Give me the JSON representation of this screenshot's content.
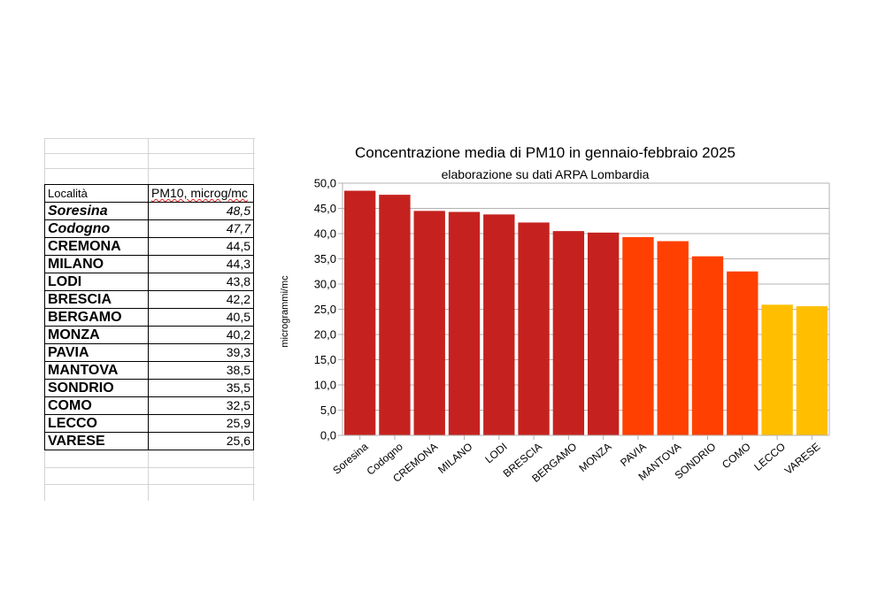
{
  "table": {
    "headers": [
      "Località",
      "PM10, microg/mc"
    ],
    "rows": [
      {
        "name": "Soresina",
        "value": "48,5",
        "italic": true
      },
      {
        "name": "Codogno",
        "value": "47,7",
        "italic": true
      },
      {
        "name": "CREMONA",
        "value": "44,5",
        "italic": false
      },
      {
        "name": "MILANO",
        "value": "44,3",
        "italic": false
      },
      {
        "name": "LODI",
        "value": "43,8",
        "italic": false
      },
      {
        "name": "BRESCIA",
        "value": "42,2",
        "italic": false
      },
      {
        "name": "BERGAMO",
        "value": "40,5",
        "italic": false
      },
      {
        "name": "MONZA",
        "value": "40,2",
        "italic": false
      },
      {
        "name": "PAVIA",
        "value": "39,3",
        "italic": false
      },
      {
        "name": "MANTOVA",
        "value": "38,5",
        "italic": false
      },
      {
        "name": "SONDRIO",
        "value": "35,5",
        "italic": false
      },
      {
        "name": "COMO",
        "value": "32,5",
        "italic": false
      },
      {
        "name": "LECCO",
        "value": "25,9",
        "italic": false
      },
      {
        "name": "VARESE",
        "value": "25,6",
        "italic": false
      }
    ]
  },
  "chart_data": {
    "type": "bar",
    "title": "Concentrazione media di PM10 in gennaio-febbraio 2025",
    "subtitle": "elaborazione su dati ARPA Lombardia",
    "xlabel": "",
    "ylabel": "microgrammi/mc",
    "categories": [
      "Soresina",
      "Codogno",
      "CREMONA",
      "MILANO",
      "LODI",
      "BRESCIA",
      "BERGAMO",
      "MONZA",
      "PAVIA",
      "MANTOVA",
      "SONDRIO",
      "COMO",
      "LECCO",
      "VARESE"
    ],
    "values": [
      48.5,
      47.7,
      44.5,
      44.3,
      43.8,
      42.2,
      40.5,
      40.2,
      39.3,
      38.5,
      35.5,
      32.5,
      25.9,
      25.6
    ],
    "bar_colors": [
      "#c5221f",
      "#c5221f",
      "#c5221f",
      "#c5221f",
      "#c5221f",
      "#c5221f",
      "#c5221f",
      "#c5221f",
      "#ff4000",
      "#ff4000",
      "#ff4000",
      "#ff4000",
      "#ffbf00",
      "#ffbf00"
    ],
    "ylim": [
      0,
      50
    ],
    "yticks": [
      "0,0",
      "5,0",
      "10,0",
      "15,0",
      "20,0",
      "25,0",
      "30,0",
      "35,0",
      "40,0",
      "45,0",
      "50,0"
    ],
    "grid": true,
    "legend": "none"
  }
}
